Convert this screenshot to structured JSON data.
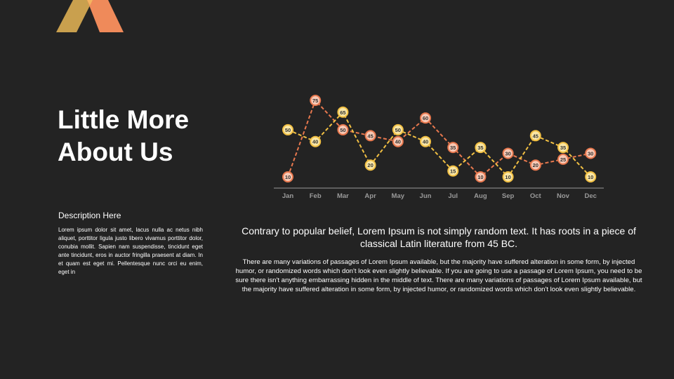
{
  "brand": {
    "colors": {
      "left": "#c9a04e",
      "right": "#ef8a5a",
      "overlap": "#f4b45f"
    }
  },
  "page": {
    "title": "Little More About Us",
    "description_heading": "Description Here",
    "description_body": "Lorem ipsum dolor sit amet, lacus nulla ac netus nibh aliquet, porttitor ligula justo libero vivamus porttitor dolor, conubia mollit. Sapien nam suspendisse, tincidunt eget ante tincidunt, eros in auctor fringilla praesent at diam. In et quam est eget mi. Pellentesque nunc orci eu enim, eget in",
    "lead": "Contrary to popular belief, Lorem Ipsum is not simply random text. It has roots in a piece of classical Latin literature from 45 BC.",
    "body": "There are many variations of passages of Lorem Ipsum available, but the majority have suffered alteration in some form, by injected humor, or randomized words which don't look even slightly believable. If you are going to use a passage of Lorem Ipsum, you need to be sure there isn't anything embarrassing hidden in the middle of text. There are many variations of passages of Lorem Ipsum available, but the majority have suffered alteration in some form, by injected humor, or randomized words which don't look even slightly believable."
  },
  "chart_data": {
    "type": "line",
    "categories": [
      "Jan",
      "Feb",
      "Mar",
      "Apr",
      "May",
      "Jun",
      "Jul",
      "Aug",
      "Sep",
      "Oct",
      "Nov",
      "Dec"
    ],
    "series": [
      {
        "values": [
          10,
          75,
          50,
          45,
          40,
          60,
          35,
          10,
          30,
          20,
          25,
          30
        ],
        "color": "#e8784e",
        "marker_fill": "#f7c9b5"
      },
      {
        "values": [
          50,
          40,
          65,
          20,
          50,
          40,
          15,
          35,
          10,
          45,
          35,
          10
        ],
        "color": "#f2c043",
        "marker_fill": "#f9e6a6"
      }
    ],
    "ylim": [
      10,
      75
    ],
    "data_labels": true,
    "line_style": "dashed",
    "grid": false,
    "legend": "none",
    "axis_color": "#9a9a9a",
    "tick_label_color": "#9a9a9a"
  }
}
